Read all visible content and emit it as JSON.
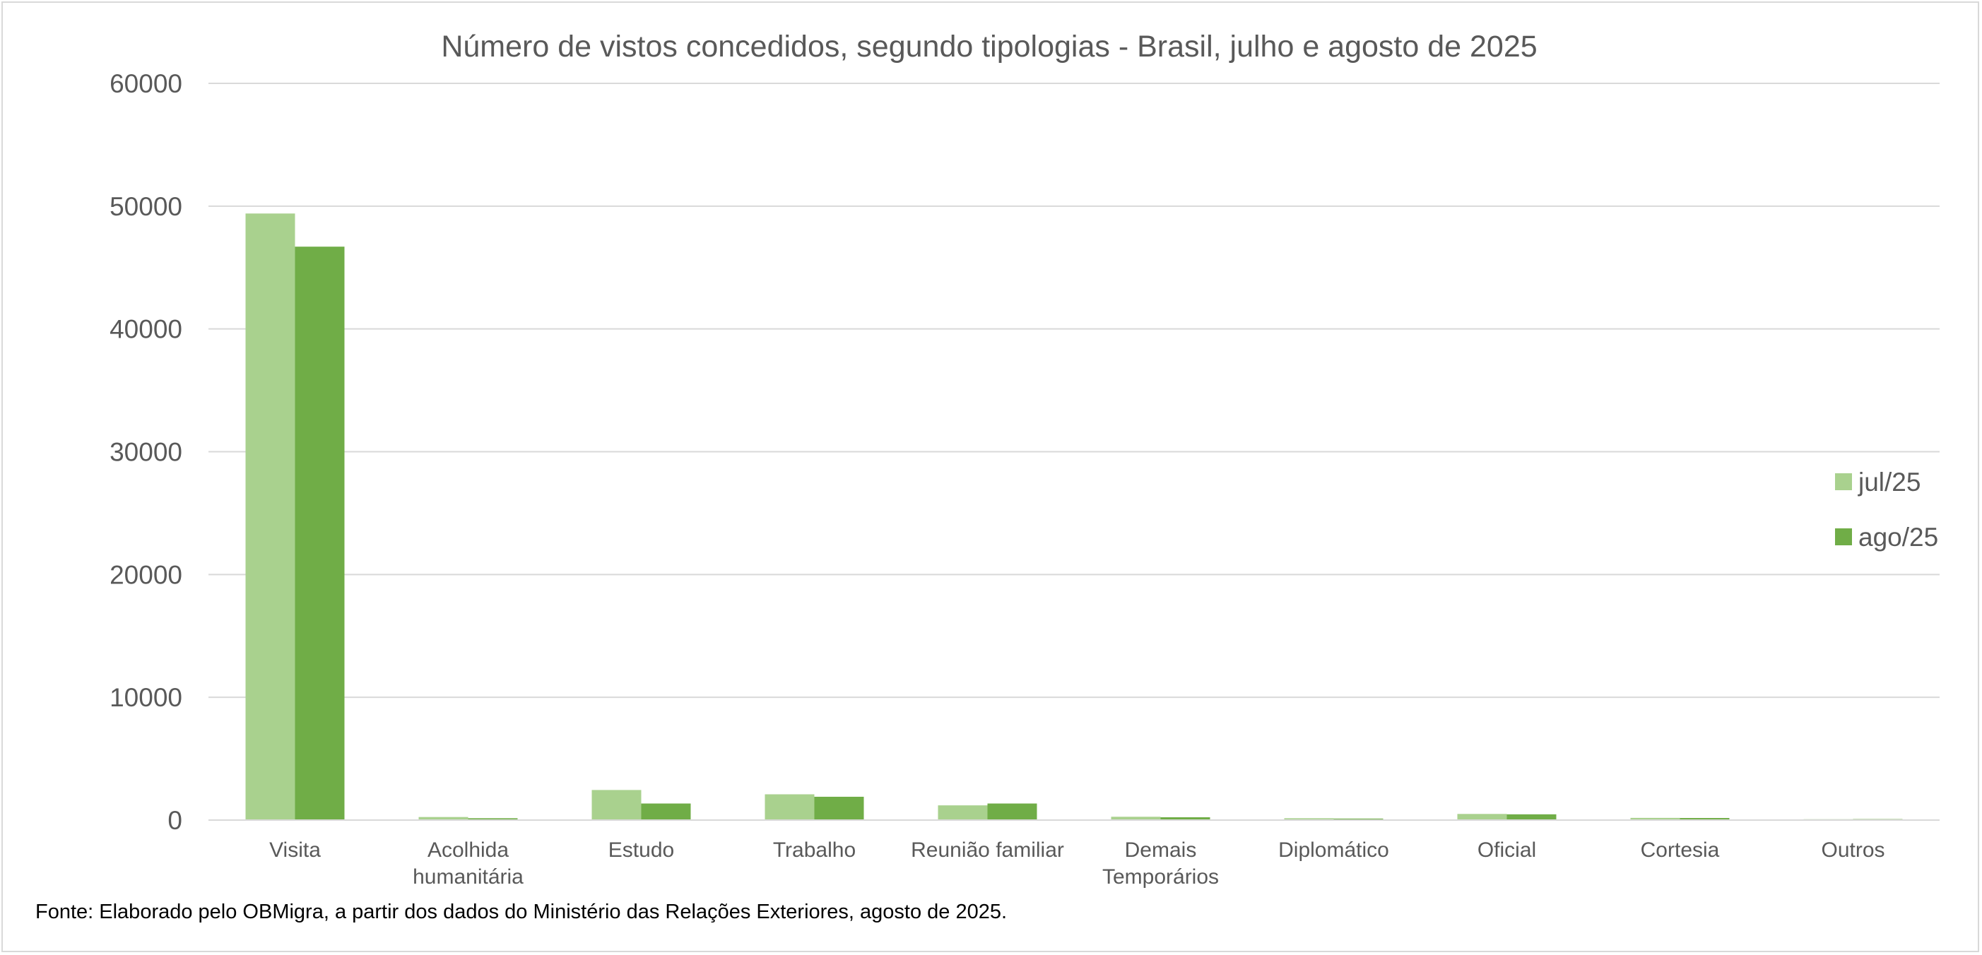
{
  "chart_data": {
    "type": "bar",
    "title": "Número de vistos concedidos, segundo tipologias - Brasil, julho e agosto de 2025",
    "xlabel": "",
    "ylabel": "",
    "ylim": [
      0,
      60000
    ],
    "yticks": [
      0,
      10000,
      20000,
      30000,
      40000,
      50000,
      60000
    ],
    "ytick_labels": [
      "0",
      "10000",
      "20000",
      "30000",
      "40000",
      "50000",
      "60000"
    ],
    "grid": true,
    "legend_position": "right",
    "categories": [
      [
        "Visita"
      ],
      [
        "Acolhida",
        "humanitária"
      ],
      [
        "Estudo"
      ],
      [
        "Trabalho"
      ],
      [
        "Reunião familiar"
      ],
      [
        "Demais",
        "Temporários"
      ],
      [
        "Diplomático"
      ],
      [
        "Oficial"
      ],
      [
        "Cortesia"
      ],
      [
        "Outros"
      ]
    ],
    "series": [
      {
        "name": "jul/25",
        "color": "#a9d18e",
        "values": [
          49400,
          250,
          2450,
          2100,
          1200,
          270,
          150,
          500,
          180,
          70
        ]
      },
      {
        "name": "ago/25",
        "color": "#70ad47",
        "values": [
          46700,
          150,
          1350,
          1900,
          1350,
          230,
          120,
          470,
          170,
          80
        ]
      }
    ]
  },
  "source": "Fonte: Elaborado pelo OBMigra, a partir dos dados do Ministério das Relações Exteriores, agosto de 2025."
}
